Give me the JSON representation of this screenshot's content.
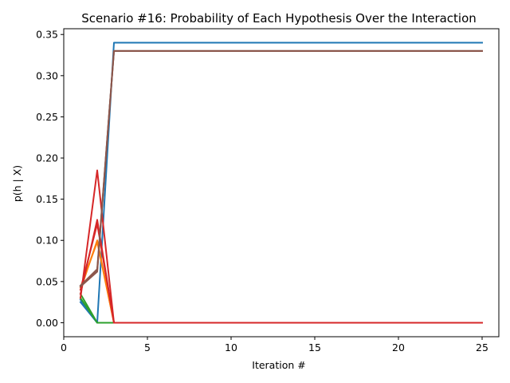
{
  "chart_data": {
    "type": "line",
    "title": "Scenario #16: Probability of Each Hypothesis Over the Interaction",
    "xlabel": "Iteration #",
    "ylabel": "p(h | X)",
    "xlim": [
      0,
      26
    ],
    "ylim": [
      -0.017,
      0.357
    ],
    "xticks": [
      0,
      5,
      10,
      15,
      20,
      25
    ],
    "yticks": [
      0.0,
      0.05,
      0.1,
      0.15,
      0.2,
      0.25,
      0.3,
      0.35
    ],
    "xtick_labels": [
      "0",
      "5",
      "10",
      "15",
      "20",
      "25"
    ],
    "ytick_labels": [
      "0.00",
      "0.05",
      "0.10",
      "0.15",
      "0.20",
      "0.25",
      "0.30",
      "0.35"
    ],
    "grid": false,
    "legend": "none",
    "series": [
      {
        "color": "#1f77b4",
        "x": [
          1,
          2,
          3,
          25
        ],
        "y": [
          0.025,
          0.0,
          0.34,
          0.34
        ]
      },
      {
        "color": "#1f77b4",
        "x": [
          1,
          2,
          3,
          25
        ],
        "y": [
          0.028,
          0.0,
          0.0,
          0.0
        ]
      },
      {
        "color": "#2ca02c",
        "x": [
          1,
          2,
          3,
          25
        ],
        "y": [
          0.03,
          0.0,
          0.0,
          0.0
        ]
      },
      {
        "color": "#2ca02c",
        "x": [
          1,
          2,
          3,
          25
        ],
        "y": [
          0.035,
          0.0,
          0.0,
          0.0
        ]
      },
      {
        "color": "#ff7f0e",
        "x": [
          1,
          2,
          3,
          25
        ],
        "y": [
          0.04,
          0.1,
          0.0,
          0.0
        ]
      },
      {
        "color": "#ff7f0e",
        "x": [
          1,
          2,
          3,
          25
        ],
        "y": [
          0.043,
          0.098,
          0.0,
          0.0
        ]
      },
      {
        "color": "#d62728",
        "x": [
          1,
          2,
          3,
          25
        ],
        "y": [
          0.03,
          0.185,
          0.0,
          0.0
        ]
      },
      {
        "color": "#d62728",
        "x": [
          1,
          2,
          3,
          25
        ],
        "y": [
          0.035,
          0.125,
          0.0,
          0.0
        ]
      },
      {
        "color": "#d62728",
        "x": [
          1,
          2,
          3,
          25
        ],
        "y": [
          0.04,
          0.12,
          0.0,
          0.0
        ]
      },
      {
        "color": "#7f7f7f",
        "x": [
          1,
          2,
          3,
          25
        ],
        "y": [
          0.045,
          0.063,
          0.33,
          0.33
        ]
      },
      {
        "color": "#8c564b",
        "x": [
          1,
          2,
          3,
          25
        ],
        "y": [
          0.044,
          0.062,
          0.33,
          0.33
        ]
      },
      {
        "color": "#8c564b",
        "x": [
          1,
          2,
          3,
          25
        ],
        "y": [
          0.045,
          0.065,
          0.33,
          0.33
        ]
      }
    ]
  }
}
